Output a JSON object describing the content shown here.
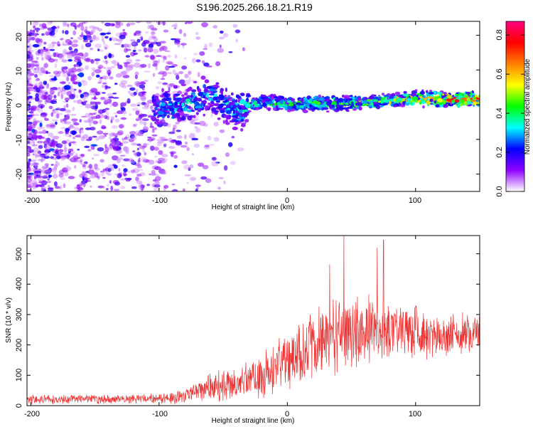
{
  "title": "S196.2025.266.18.21.R19",
  "chart_data": [
    {
      "type": "heatmap",
      "name": "spectrogram",
      "xlabel": "Height of straight line (km)",
      "ylabel": "Frequency (Hz)",
      "xlim": [
        -203,
        150
      ],
      "ylim": [
        -25,
        24
      ],
      "xticks": [
        "-200",
        "-100",
        "0",
        "100"
      ],
      "yticks": [
        "20",
        "10",
        "0",
        "-10",
        "-20"
      ],
      "colorbar": {
        "label": "Normalized spectral amplitude",
        "range": [
          0,
          0.87
        ],
        "ticks": [
          "0.0",
          "0.2",
          "0.4",
          "0.6",
          "0.8"
        ],
        "colors": [
          "#ffffff",
          "#8f00ff",
          "#0000ff",
          "#00ffff",
          "#00ff00",
          "#ffff00",
          "#ff7f00",
          "#ff0000",
          "#ff0080"
        ]
      },
      "signal_band": {
        "note": "narrow band near 0 Hz, strengthening with height",
        "x": [
          -100,
          -80,
          -60,
          -40,
          -20,
          0,
          20,
          40,
          60,
          80,
          100,
          120,
          150
        ],
        "center_hz": [
          -1,
          0,
          3,
          -2,
          1,
          0,
          0.5,
          0.5,
          0.5,
          1,
          2,
          1.5,
          1.5
        ],
        "amplitude": [
          0.3,
          0.35,
          0.3,
          0.35,
          0.4,
          0.4,
          0.45,
          0.45,
          0.5,
          0.55,
          0.6,
          0.7,
          0.75
        ]
      }
    },
    {
      "type": "line",
      "name": "snr",
      "xlabel": "Height of straight line (km)",
      "ylabel": "SNR (10 * v/v)",
      "xlim": [
        -203,
        150
      ],
      "ylim": [
        0,
        560
      ],
      "xticks": [
        "-200",
        "-100",
        "0",
        "100"
      ],
      "yticks": [
        "500",
        "400",
        "300",
        "200",
        "100",
        "0"
      ],
      "color": "#ee3333",
      "envelope": {
        "x": [
          -203,
          -100,
          -80,
          -60,
          -40,
          -20,
          0,
          20,
          40,
          60,
          80,
          100,
          120,
          150
        ],
        "mean": [
          20,
          22,
          30,
          60,
          70,
          100,
          150,
          200,
          240,
          250,
          250,
          245,
          230,
          240
        ],
        "amplitude": [
          15,
          15,
          25,
          45,
          50,
          70,
          90,
          110,
          120,
          110,
          90,
          80,
          70,
          60
        ]
      },
      "peaks": [
        {
          "x": 44,
          "y": 560
        },
        {
          "x": 75,
          "y": 545
        },
        {
          "x": 70,
          "y": 520
        },
        {
          "x": 33,
          "y": 465
        }
      ]
    }
  ]
}
